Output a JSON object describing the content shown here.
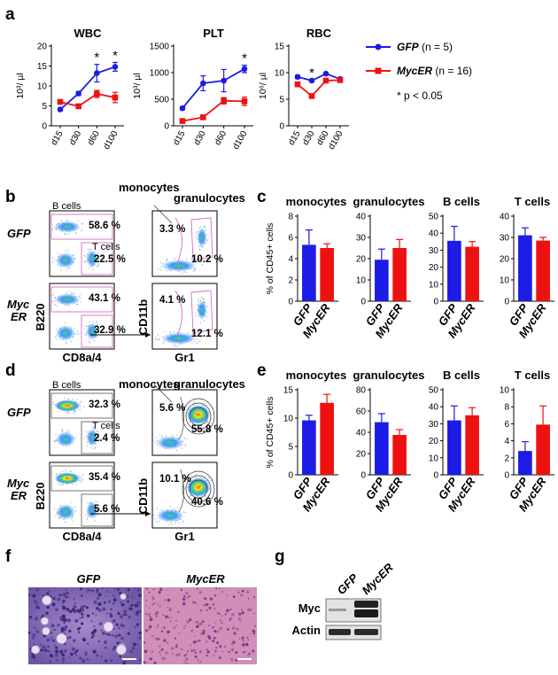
{
  "panel_labels": {
    "a": "a",
    "b": "b",
    "c": "c",
    "d": "d",
    "e": "e",
    "f": "f",
    "g": "g"
  },
  "colors": {
    "gfp": "#1c1ce6",
    "mycer": "#ee1111"
  },
  "legend": {
    "gfp_name": "GFP",
    "gfp_n": " (n = 5)",
    "mycer_name": "MycER",
    "mycer_n": " (n = 16)",
    "sig": "* p < 0.05"
  },
  "chart_data": [
    {
      "id": "wbc",
      "type": "line",
      "title": "WBC",
      "ylabel": "10³/ µl",
      "categories": [
        "d15",
        "d30",
        "d60",
        "d100"
      ],
      "ylim": [
        0,
        20
      ],
      "yticks": [
        "0",
        "5",
        "10",
        "15",
        "20"
      ],
      "series": [
        {
          "name": "GFP",
          "values": [
            4.1,
            8.1,
            13.2,
            14.8
          ],
          "err": [
            0.3,
            0.5,
            2.2,
            1.1
          ]
        },
        {
          "name": "MycER",
          "values": [
            6.0,
            4.9,
            8.0,
            7.1
          ],
          "err": [
            0.4,
            0.4,
            0.9,
            1.3
          ]
        }
      ],
      "significant": [
        "d60",
        "d100"
      ]
    },
    {
      "id": "plt",
      "type": "line",
      "title": "PLT",
      "ylabel": "10³/ µl",
      "categories": [
        "d15",
        "d30",
        "d60",
        "d100"
      ],
      "ylim": [
        0,
        1500
      ],
      "yticks": [
        "0",
        "500",
        "1000",
        "1500"
      ],
      "series": [
        {
          "name": "GFP",
          "values": [
            330,
            800,
            850,
            1070
          ],
          "err": [
            30,
            140,
            210,
            70
          ]
        },
        {
          "name": "MycER",
          "values": [
            90,
            160,
            470,
            460
          ],
          "err": [
            20,
            40,
            60,
            80
          ]
        }
      ],
      "significant": [
        "d100"
      ]
    },
    {
      "id": "rbc",
      "type": "line",
      "title": "RBC",
      "ylabel": "10⁶/ µl",
      "categories": [
        "d15",
        "d30",
        "d60",
        "d100"
      ],
      "ylim": [
        0,
        15
      ],
      "yticks": [
        "0",
        "5",
        "10",
        "15"
      ],
      "series": [
        {
          "name": "GFP",
          "values": [
            9.2,
            8.5,
            9.8,
            8.8
          ],
          "err": [
            0.3,
            0.2,
            0.2,
            0.2
          ]
        },
        {
          "name": "MycER",
          "values": [
            7.8,
            5.6,
            8.5,
            8.6
          ],
          "err": [
            0.4,
            0.3,
            0.2,
            0.2
          ]
        }
      ],
      "significant": [
        "d30"
      ]
    },
    {
      "id": "c_mono",
      "type": "bar",
      "title": "monocytes",
      "ylabel": "% of CD45+ cells",
      "categories": [
        "GFP",
        "MycER"
      ],
      "ylim": [
        0,
        8
      ],
      "yticks": [
        "0",
        "2",
        "4",
        "6",
        "8"
      ],
      "values": [
        5.3,
        5.0
      ],
      "err": [
        1.4,
        0.4
      ]
    },
    {
      "id": "c_gran",
      "type": "bar",
      "title": "granulocytes",
      "categories": [
        "GFP",
        "MycER"
      ],
      "ylim": [
        0,
        40
      ],
      "yticks": [
        "0",
        "10",
        "20",
        "30",
        "40"
      ],
      "values": [
        19.5,
        25.0
      ],
      "err": [
        5.0,
        4.0
      ]
    },
    {
      "id": "c_b",
      "type": "bar",
      "title": "B cells",
      "categories": [
        "GFP",
        "MycER"
      ],
      "ylim": [
        0,
        50
      ],
      "yticks": [
        "0",
        "10",
        "20",
        "30",
        "40",
        "50"
      ],
      "values": [
        35.5,
        32.0
      ],
      "err": [
        8.5,
        3.0
      ]
    },
    {
      "id": "c_t",
      "type": "bar",
      "title": "T cells",
      "categories": [
        "GFP",
        "MycER"
      ],
      "ylim": [
        0,
        40
      ],
      "yticks": [
        "0",
        "10",
        "20",
        "30",
        "40"
      ],
      "values": [
        31.0,
        28.5
      ],
      "err": [
        3.5,
        1.5
      ]
    },
    {
      "id": "e_mono",
      "type": "bar",
      "title": "monocytes",
      "ylabel": "% of CD45+ cells",
      "categories": [
        "GFP",
        "MycER"
      ],
      "ylim": [
        0,
        15
      ],
      "yticks": [
        "0",
        "5",
        "10",
        "15"
      ],
      "values": [
        9.6,
        12.7
      ],
      "err": [
        0.9,
        1.5
      ]
    },
    {
      "id": "e_gran",
      "type": "bar",
      "title": "granulocytes",
      "categories": [
        "GFP",
        "MycER"
      ],
      "ylim": [
        0,
        80
      ],
      "yticks": [
        "0",
        "20",
        "40",
        "60",
        "80"
      ],
      "values": [
        49.5,
        37.5
      ],
      "err": [
        8.0,
        5.0
      ]
    },
    {
      "id": "e_b",
      "type": "bar",
      "title": "B cells",
      "categories": [
        "GFP",
        "MycER"
      ],
      "ylim": [
        0,
        50
      ],
      "yticks": [
        "0",
        "10",
        "20",
        "30",
        "40",
        "50"
      ],
      "values": [
        32.0,
        35.0
      ],
      "err": [
        8.5,
        4.5
      ]
    },
    {
      "id": "e_t",
      "type": "bar",
      "title": "T cells",
      "categories": [
        "GFP",
        "MycER"
      ],
      "ylim": [
        0,
        10
      ],
      "yticks": [
        "0",
        "2",
        "4",
        "6",
        "8",
        "10"
      ],
      "values": [
        2.8,
        5.9
      ],
      "err": [
        1.1,
        2.2
      ]
    }
  ],
  "flow_b": {
    "gfp_label": "GFP",
    "myc_label_1": "Myc",
    "myc_label_2": "ER",
    "b_cells": "B cells",
    "t_cells": "T cells",
    "monocytes": "monocytes",
    "granulocytes": "granulocytes",
    "gfp_b": "58.6 %",
    "gfp_t": "22.5 %",
    "gfp_mono": "3.3 %",
    "gfp_gran": "10.2 %",
    "myc_b": "43.1 %",
    "myc_t": "32.9 %",
    "myc_mono": "4.1 %",
    "myc_gran": "12.1 %",
    "x1": "CD8a/4",
    "y1": "B220",
    "x2": "Gr1",
    "y2": "CD11b"
  },
  "flow_d": {
    "gfp_label": "GFP",
    "myc_label_1": "Myc",
    "myc_label_2": "ER",
    "b_cells": "B cells",
    "t_cells": "T cells",
    "monocytes": "monocytes",
    "granulocytes": "granulocytes",
    "gfp_b": "32.3 %",
    "gfp_t": "2.4 %",
    "gfp_mono": "5.6 %",
    "gfp_gran": "55.8 %",
    "myc_b": "35.4 %",
    "myc_t": "5.6 %",
    "myc_mono": "10.1 %",
    "myc_gran": "40.6 %",
    "x1": "CD8a/4",
    "y1": "B220",
    "x2": "Gr1",
    "y2": "CD11b"
  },
  "histology": {
    "gfp": "GFP",
    "mycer": "MycER"
  },
  "western": {
    "gfp": "GFP",
    "mycer": "MycER",
    "myc": "Myc",
    "actin": "Actin"
  }
}
